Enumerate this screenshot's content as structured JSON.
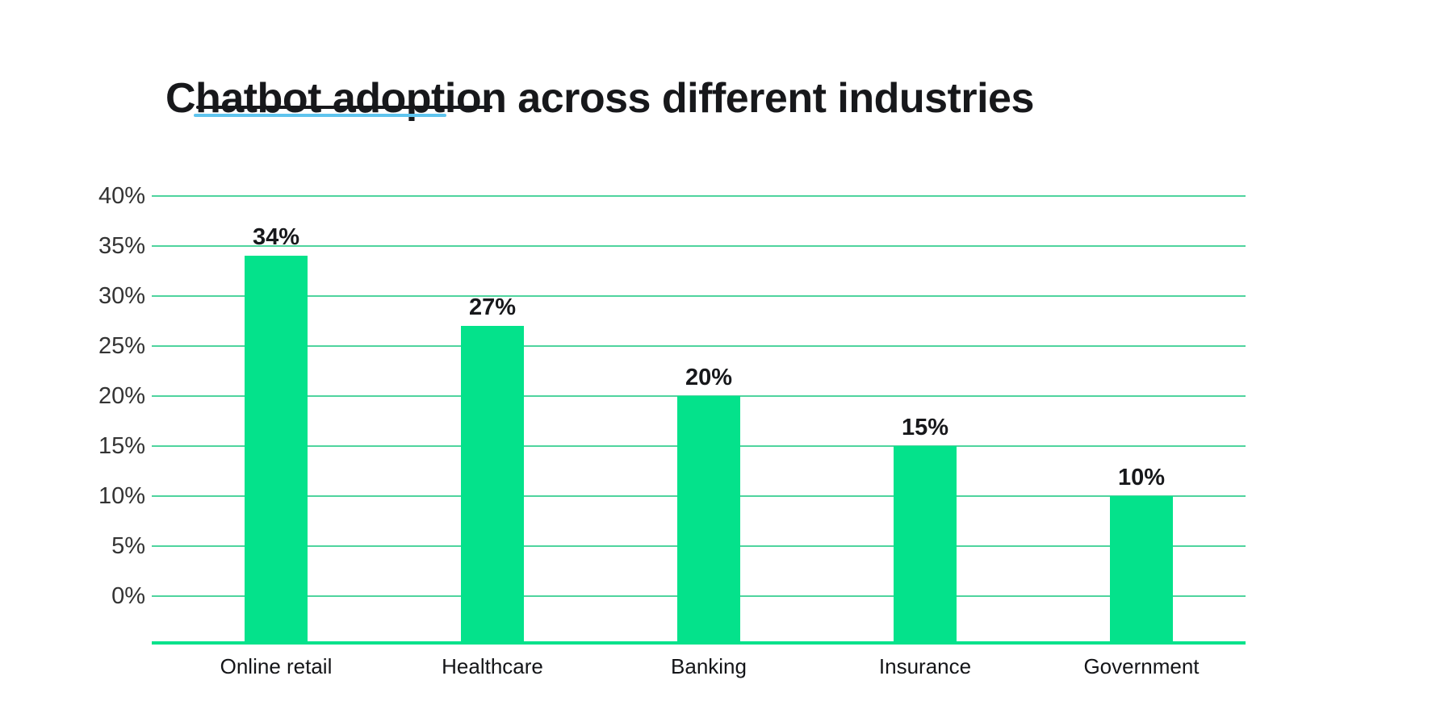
{
  "page": {
    "background": "#ffffff"
  },
  "chart_data": {
    "type": "bar",
    "title": "Chatbot adoption across different industries",
    "xlabel": "",
    "ylabel": "",
    "categories": [
      "Online retail",
      "Healthcare",
      "Banking",
      "Insurance",
      "Government"
    ],
    "values": [
      34,
      27,
      20,
      15,
      10
    ],
    "value_labels": [
      "34%",
      "27%",
      "20%",
      "15%",
      "10%"
    ],
    "y_ticks": [
      {
        "value": 40,
        "label": "40%"
      },
      {
        "value": 35,
        "label": "35%"
      },
      {
        "value": 30,
        "label": "30%"
      },
      {
        "value": 25,
        "label": "25%"
      },
      {
        "value": 20,
        "label": "20%"
      },
      {
        "value": 15,
        "label": "15%"
      },
      {
        "value": 10,
        "label": "10%"
      },
      {
        "value": 5,
        "label": "5%"
      },
      {
        "value": 0,
        "label": "0%"
      }
    ],
    "ylim": [
      -5,
      40
    ],
    "grid": "horizontal-only",
    "legend": "none",
    "colors": {
      "bar": "#04E28B",
      "gridline": "#4FD49E",
      "axis_line": "#04E28B",
      "title_text": "#17181B",
      "tick_text": "#333333",
      "category_text": "#141518",
      "value_label_text": "#17181B",
      "underline_primary": "#17181B",
      "underline_accent": "#5FC4EE"
    }
  }
}
